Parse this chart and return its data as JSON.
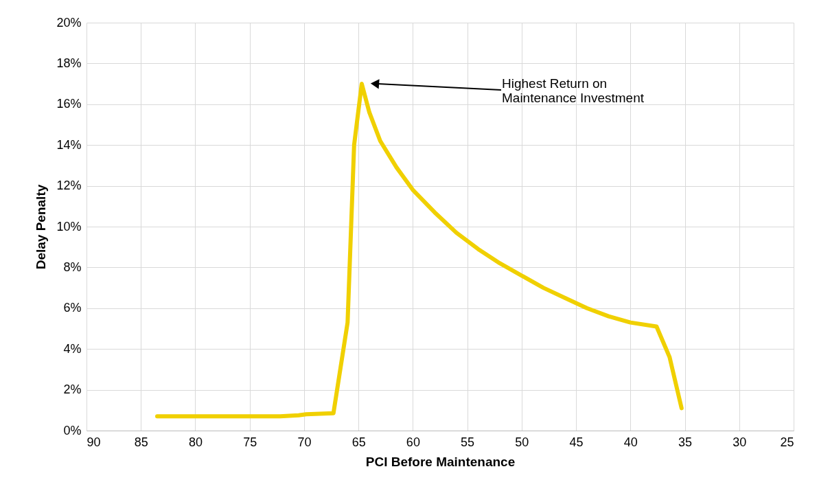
{
  "chart_data": {
    "type": "line",
    "xlabel": "PCI Before Maintenance",
    "ylabel": "Delay Penalty",
    "x": [
      83.5,
      80,
      75,
      72.2,
      70.5,
      69.8,
      67.3,
      66.0,
      65.4,
      64.7,
      64.0,
      63.0,
      61.5,
      60.0,
      58.0,
      56.0,
      54.0,
      52.0,
      50.0,
      48.0,
      46.0,
      44.0,
      42.0,
      40.0,
      37.6,
      36.4,
      35.3
    ],
    "series": [
      {
        "color": "#f0d000",
        "values": [
          0.7,
          0.7,
          0.7,
          0.7,
          0.75,
          0.8,
          0.85,
          5.3,
          14.0,
          17.0,
          15.6,
          14.2,
          12.9,
          11.8,
          10.7,
          9.7,
          8.9,
          8.2,
          7.6,
          7.0,
          6.5,
          6.0,
          5.6,
          5.3,
          5.1,
          3.6,
          1.1
        ]
      }
    ],
    "xlim": [
      90,
      25
    ],
    "xticks": [
      90,
      85,
      80,
      75,
      70,
      65,
      60,
      55,
      50,
      45,
      40,
      35,
      30,
      25
    ],
    "ylim": [
      0,
      20
    ],
    "yticks": [
      {
        "value": 0,
        "label": "0%"
      },
      {
        "value": 2,
        "label": "2%"
      },
      {
        "value": 4,
        "label": "4%"
      },
      {
        "value": 6,
        "label": "6%"
      },
      {
        "value": 8,
        "label": "8%"
      },
      {
        "value": 10,
        "label": "10%"
      },
      {
        "value": 12,
        "label": "12%"
      },
      {
        "value": 14,
        "label": "14%"
      },
      {
        "value": 16,
        "label": "16%"
      },
      {
        "value": 18,
        "label": "18%"
      },
      {
        "value": 20,
        "label": "20%"
      }
    ],
    "grid": true,
    "marker": "none",
    "line_style": "solid",
    "annotations": [
      "Highest Return on\nMaintenance Investment"
    ]
  }
}
